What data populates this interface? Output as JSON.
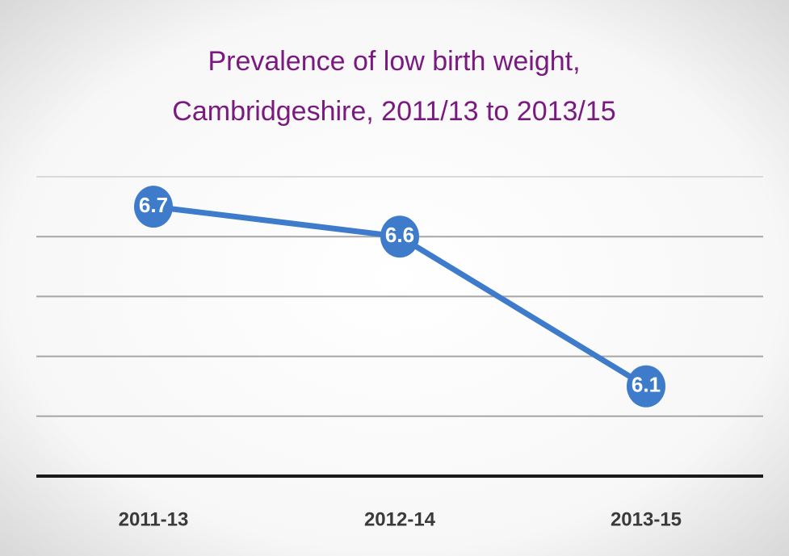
{
  "chart_data": {
    "type": "line",
    "title": [
      "Prevalence of low birth weight,",
      "Cambridgeshire,  2011/13 to 2013/15"
    ],
    "categories": [
      "2011-13",
      "2012-14",
      "2013-15"
    ],
    "values": [
      6.7,
      6.6,
      6.1
    ],
    "color": "#3e7ccb",
    "ylim": [
      5.8,
      6.8
    ],
    "yticks": [
      6.0,
      6.2,
      6.4,
      6.6,
      6.8
    ],
    "grid": true
  }
}
